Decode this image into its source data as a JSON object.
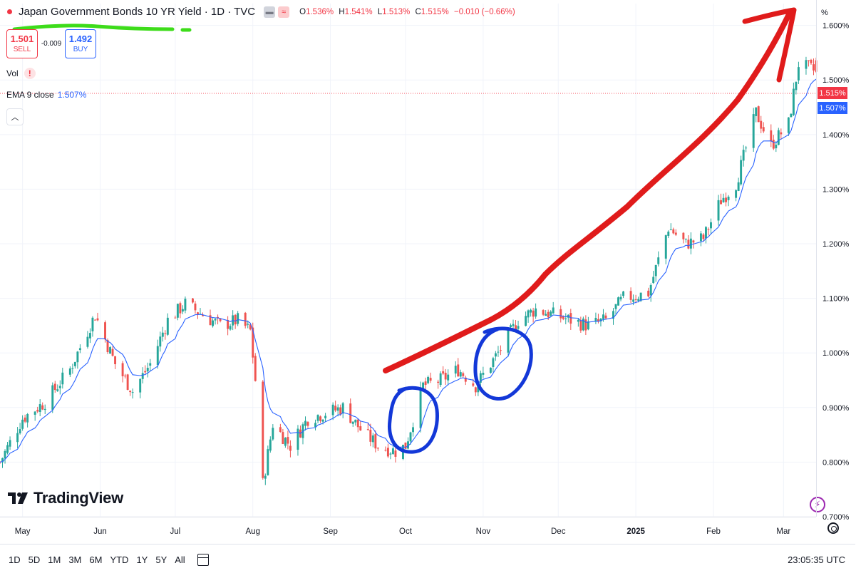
{
  "header": {
    "title": "Japan Government Bonds 10 YR Yield · 1D · TVC",
    "ohlc": {
      "o_label": "O",
      "o": "1.536%",
      "h_label": "H",
      "h": "1.541%",
      "l_label": "L",
      "l": "1.513%",
      "c_label": "C",
      "c": "1.515%",
      "change": "−0.010 (−0.66%)"
    }
  },
  "trade": {
    "sell_price": "1.501",
    "sell_label": "SELL",
    "spread": "-0.009",
    "buy_price": "1.492",
    "buy_label": "BUY"
  },
  "indicators": {
    "vol_label": "Vol",
    "vol_warning": "!",
    "ema_label": "EMA 9 close",
    "ema_value": "1.507%"
  },
  "price_axis": {
    "unit_label": "%",
    "last_price_tag": "1.515%",
    "ema_tag": "1.507%"
  },
  "colors": {
    "up": "#26a69a",
    "down": "#ef5350",
    "ema": "#2962ff",
    "annotation_arrow": "#e01b1b",
    "annotation_circle": "#1338d8",
    "annotation_underline": "#3ddc1a"
  },
  "brand": {
    "logo_text": "TradingView"
  },
  "bottom_bar": {
    "ranges": [
      "1D",
      "5D",
      "1M",
      "3M",
      "6M",
      "YTD",
      "1Y",
      "5Y",
      "All"
    ],
    "time": "23:05:35 UTC"
  },
  "chart_data": {
    "type": "candlestick",
    "y_unit": "%",
    "ylim": [
      0.7,
      1.64
    ],
    "y_ticks": [
      "1.600%",
      "1.500%",
      "1.400%",
      "1.300%",
      "1.200%",
      "1.100%",
      "1.000%",
      "0.900%",
      "0.800%",
      "0.700%"
    ],
    "x_ticks": [
      "May",
      "Jun",
      "Jul",
      "Aug",
      "Sep",
      "Oct",
      "Nov",
      "Dec",
      "2025",
      "Feb",
      "Mar"
    ],
    "x_range": [
      "2024-04-22",
      "2025-03-14"
    ],
    "last_close": 1.515,
    "ema_last": 1.507,
    "series": [
      {
        "name": "EMA 9 close",
        "type": "line"
      }
    ],
    "anchor_closes": [
      [
        "2024-04-22",
        0.8
      ],
      [
        "2024-05-01",
        0.88
      ],
      [
        "2024-05-10",
        0.91
      ],
      [
        "2024-05-20",
        0.97
      ],
      [
        "2024-05-30",
        1.07
      ],
      [
        "2024-06-07",
        0.98
      ],
      [
        "2024-06-14",
        0.93
      ],
      [
        "2024-06-21",
        0.98
      ],
      [
        "2024-06-28",
        1.06
      ],
      [
        "2024-07-05",
        1.09
      ],
      [
        "2024-07-12",
        1.07
      ],
      [
        "2024-07-19",
        1.05
      ],
      [
        "2024-07-26",
        1.06
      ],
      [
        "2024-07-31",
        1.04
      ],
      [
        "2024-08-02",
        0.95
      ],
      [
        "2024-08-05",
        0.76
      ],
      [
        "2024-08-09",
        0.87
      ],
      [
        "2024-08-16",
        0.83
      ],
      [
        "2024-08-23",
        0.88
      ],
      [
        "2024-08-30",
        0.89
      ],
      [
        "2024-09-06",
        0.9
      ],
      [
        "2024-09-13",
        0.86
      ],
      [
        "2024-09-20",
        0.83
      ],
      [
        "2024-09-27",
        0.82
      ],
      [
        "2024-10-01",
        0.83
      ],
      [
        "2024-10-08",
        0.94
      ],
      [
        "2024-10-15",
        0.95
      ],
      [
        "2024-10-22",
        0.97
      ],
      [
        "2024-10-29",
        0.94
      ],
      [
        "2024-11-01",
        0.96
      ],
      [
        "2024-11-07",
        1.0
      ],
      [
        "2024-11-15",
        1.06
      ],
      [
        "2024-11-22",
        1.08
      ],
      [
        "2024-11-29",
        1.07
      ],
      [
        "2024-12-06",
        1.06
      ],
      [
        "2024-12-13",
        1.05
      ],
      [
        "2024-12-20",
        1.06
      ],
      [
        "2024-12-27",
        1.1
      ],
      [
        "2025-01-06",
        1.11
      ],
      [
        "2025-01-14",
        1.23
      ],
      [
        "2025-01-21",
        1.2
      ],
      [
        "2025-01-28",
        1.21
      ],
      [
        "2025-02-04",
        1.28
      ],
      [
        "2025-02-10",
        1.31
      ],
      [
        "2025-02-18",
        1.44
      ],
      [
        "2025-02-24",
        1.38
      ],
      [
        "2025-03-03",
        1.42
      ],
      [
        "2025-03-07",
        1.53
      ],
      [
        "2025-03-14",
        1.515
      ]
    ]
  },
  "annotations": {
    "arrow": "red hand-drawn arrow rising from Sep to top-right",
    "circles": [
      "around early October lows",
      "around early November breakout"
    ],
    "underline": "green underline beneath title"
  }
}
